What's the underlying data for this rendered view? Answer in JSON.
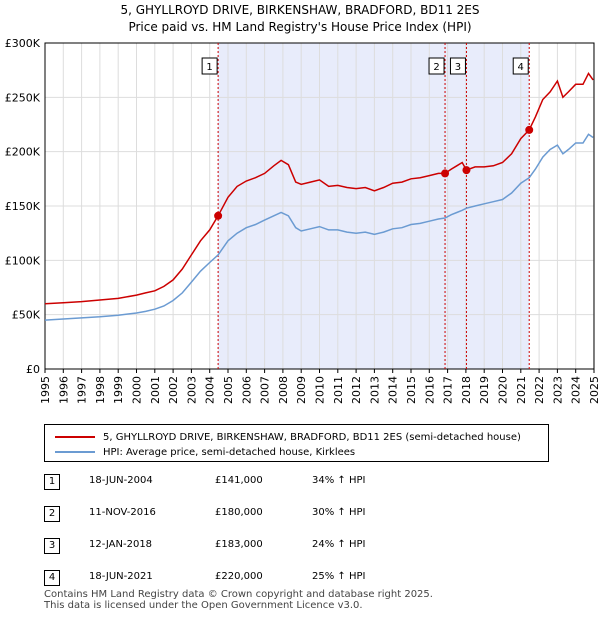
{
  "title": "5, GHYLLROYD DRIVE, BIRKENSHAW, BRADFORD, BD11 2ES",
  "subtitle": "Price paid vs. HM Land Registry's House Price Index (HPI)",
  "chart_data": {
    "type": "line",
    "x_range": [
      1995,
      2025
    ],
    "ylim": [
      0,
      300000
    ],
    "y_ticks": [
      0,
      50000,
      100000,
      150000,
      200000,
      250000,
      300000
    ],
    "y_tick_labels": [
      "£0",
      "£50K",
      "£100K",
      "£150K",
      "£200K",
      "£250K",
      "£300K"
    ],
    "x_tick_labels": [
      "1995",
      "1996",
      "1997",
      "1998",
      "1999",
      "2000",
      "2001",
      "2002",
      "2003",
      "2004",
      "2005",
      "2006",
      "2007",
      "2008",
      "2009",
      "2010",
      "2011",
      "2012",
      "2013",
      "2014",
      "2015",
      "2016",
      "2017",
      "2018",
      "2019",
      "2020",
      "2021",
      "2022",
      "2023",
      "2024",
      "2025"
    ],
    "grid": true,
    "shaded_period": [
      2004.46,
      2021.46
    ],
    "series": [
      {
        "name": "5, GHYLLROYD DRIVE, BIRKENSHAW, BRADFORD, BD11 2ES (semi-detached house)",
        "color": "#cc0000",
        "x": [
          1995.0,
          1996.0,
          1997.0,
          1998.0,
          1999.0,
          2000.0,
          2000.5,
          2001.0,
          2001.5,
          2002.0,
          2002.5,
          2003.0,
          2003.5,
          2004.0,
          2004.46,
          2005.0,
          2005.5,
          2006.0,
          2006.5,
          2007.0,
          2007.5,
          2007.9,
          2008.3,
          2008.7,
          2009.0,
          2009.5,
          2010.0,
          2010.5,
          2011.0,
          2011.5,
          2012.0,
          2012.5,
          2013.0,
          2013.5,
          2014.0,
          2014.5,
          2015.0,
          2015.5,
          2016.0,
          2016.5,
          2016.86,
          2017.2,
          2017.5,
          2017.8,
          2018.03,
          2018.5,
          2019.0,
          2019.5,
          2020.0,
          2020.5,
          2021.0,
          2021.46,
          2021.8,
          2022.2,
          2022.6,
          2023.0,
          2023.3,
          2023.6,
          2024.0,
          2024.4,
          2024.7,
          2024.95
        ],
        "values": [
          60000,
          61000,
          62000,
          63500,
          65000,
          68000,
          70000,
          72000,
          76000,
          82000,
          92000,
          105000,
          118000,
          128000,
          141000,
          158000,
          168000,
          173000,
          176000,
          180000,
          187000,
          192000,
          188000,
          172000,
          170000,
          172000,
          174000,
          168000,
          169000,
          167000,
          166000,
          167000,
          164000,
          167000,
          171000,
          172000,
          175000,
          176000,
          178000,
          180000,
          180000,
          184000,
          187000,
          190000,
          183000,
          186000,
          186000,
          187000,
          190000,
          198000,
          212000,
          220000,
          232000,
          248000,
          255000,
          265000,
          250000,
          255000,
          262000,
          262000,
          272000,
          266000
        ]
      },
      {
        "name": "HPI: Average price, semi-detached house, Kirklees",
        "color": "#6b9bd2",
        "x": [
          1995.0,
          1996.0,
          1997.0,
          1998.0,
          1999.0,
          2000.0,
          2000.5,
          2001.0,
          2001.5,
          2002.0,
          2002.5,
          2003.0,
          2003.5,
          2004.0,
          2004.46,
          2005.0,
          2005.5,
          2006.0,
          2006.5,
          2007.0,
          2007.5,
          2007.9,
          2008.3,
          2008.7,
          2009.0,
          2009.5,
          2010.0,
          2010.5,
          2011.0,
          2011.5,
          2012.0,
          2012.5,
          2013.0,
          2013.5,
          2014.0,
          2014.5,
          2015.0,
          2015.5,
          2016.0,
          2016.5,
          2016.86,
          2017.2,
          2017.5,
          2017.8,
          2018.03,
          2018.5,
          2019.0,
          2019.5,
          2020.0,
          2020.5,
          2021.0,
          2021.46,
          2021.8,
          2022.2,
          2022.6,
          2023.0,
          2023.3,
          2023.6,
          2024.0,
          2024.4,
          2024.7,
          2024.95
        ],
        "values": [
          45000,
          46000,
          47000,
          48000,
          49500,
          51500,
          53000,
          55000,
          58000,
          63000,
          70000,
          80000,
          90000,
          98000,
          105000,
          118000,
          125000,
          130000,
          133000,
          137000,
          141000,
          144000,
          141000,
          130000,
          127000,
          129000,
          131000,
          128000,
          128000,
          126000,
          125000,
          126000,
          124000,
          126000,
          129000,
          130000,
          133000,
          134000,
          136000,
          138000,
          139000,
          142000,
          144000,
          146000,
          148000,
          150000,
          152000,
          154000,
          156000,
          162000,
          171000,
          176000,
          184000,
          195000,
          202000,
          206000,
          198000,
          202000,
          208000,
          208000,
          216000,
          213000
        ]
      }
    ],
    "sales_markers": [
      {
        "label": "1",
        "x": 2004.46,
        "y": 141000
      },
      {
        "label": "2",
        "x": 2016.86,
        "y": 180000
      },
      {
        "label": "3",
        "x": 2018.03,
        "y": 183000
      },
      {
        "label": "4",
        "x": 2021.46,
        "y": 220000
      }
    ]
  },
  "legend": {
    "property": "5, GHYLLROYD DRIVE, BIRKENSHAW, BRADFORD, BD11 2ES (semi-detached house)",
    "hpi": "HPI: Average price, semi-detached house, Kirklees"
  },
  "sales": [
    {
      "num": "1",
      "date": "18-JUN-2004",
      "price": "£141,000",
      "hpi": "34% ↑ HPI"
    },
    {
      "num": "2",
      "date": "11-NOV-2016",
      "price": "£180,000",
      "hpi": "30% ↑ HPI"
    },
    {
      "num": "3",
      "date": "12-JAN-2018",
      "price": "£183,000",
      "hpi": "24% ↑ HPI"
    },
    {
      "num": "4",
      "date": "18-JUN-2021",
      "price": "£220,000",
      "hpi": "25% ↑ HPI"
    }
  ],
  "footer": {
    "line1": "Contains HM Land Registry data © Crown copyright and database right 2025.",
    "line2": "This data is licensed under the Open Government Licence v3.0."
  },
  "colors": {
    "property": "#cc0000",
    "hpi": "#6b9bd2",
    "shade": "#e8ecfb",
    "grid": "#dddddd"
  }
}
